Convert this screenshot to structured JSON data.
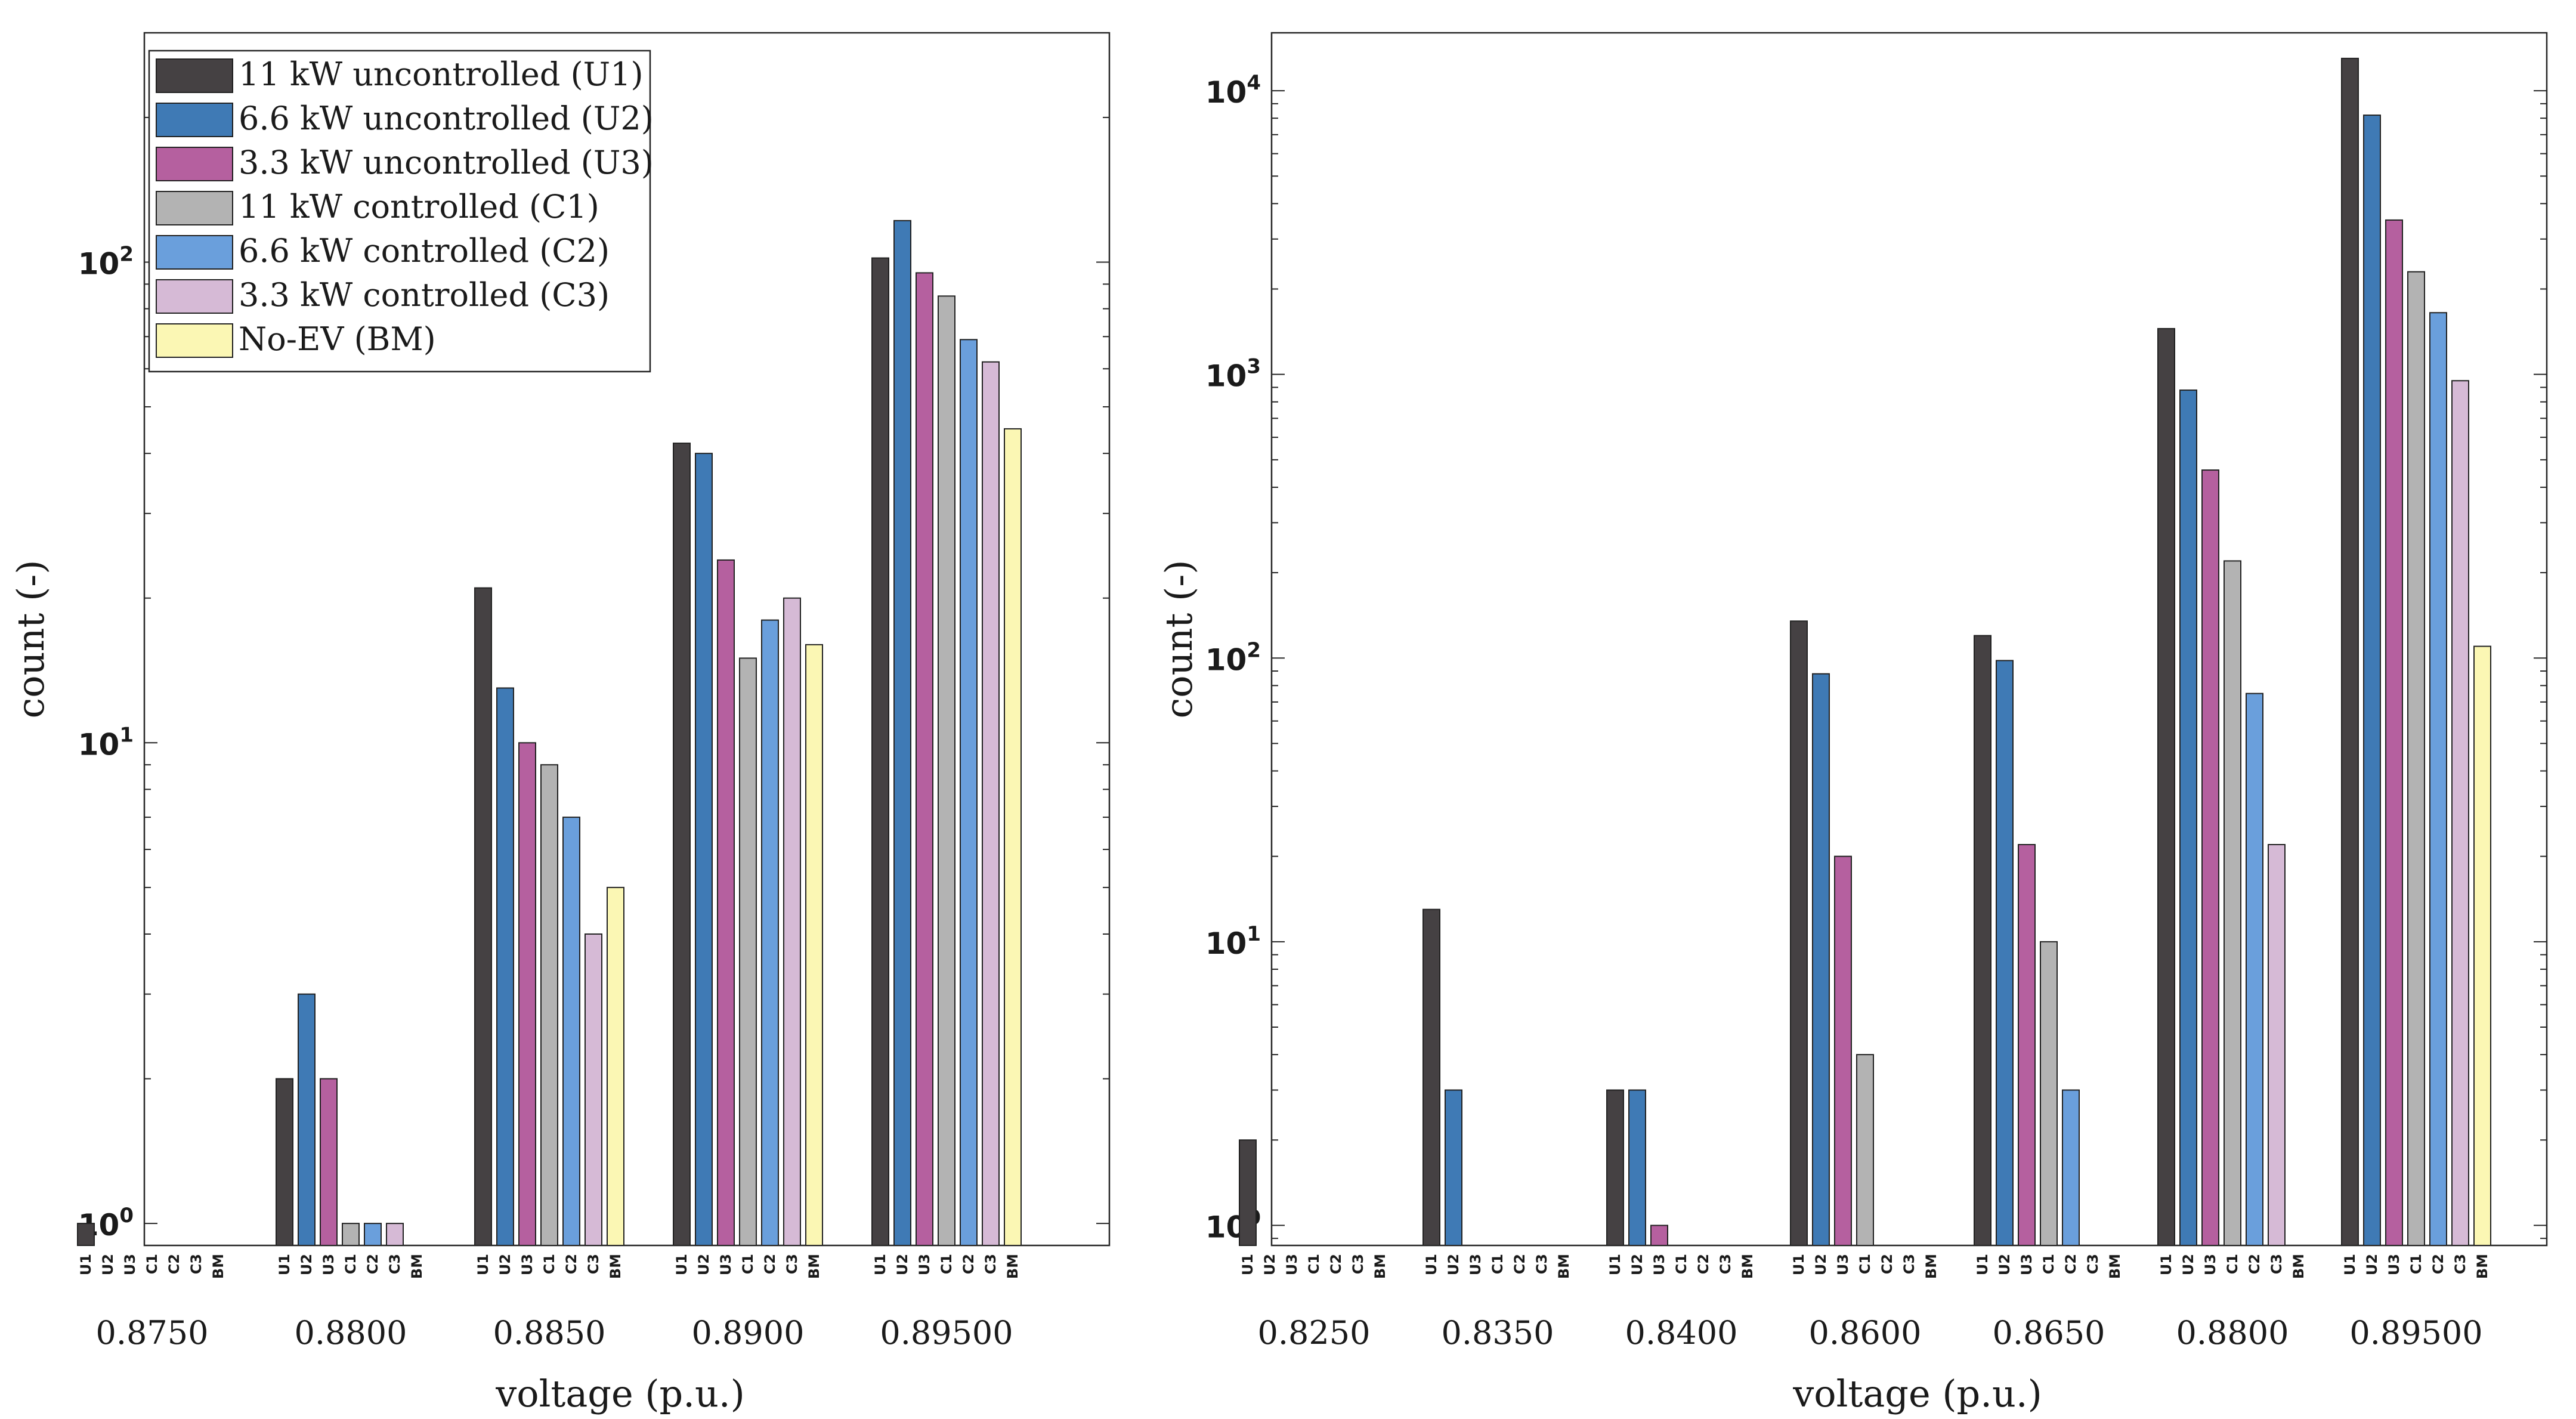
{
  "chart_data": [
    {
      "type": "bar",
      "scale": "log",
      "title": "",
      "xlabel": "voltage (p.u.)",
      "ylabel": "count (-)",
      "ylim": [
        0.9,
        300
      ],
      "yticks": [
        {
          "value": 1,
          "base": "10",
          "exp": "0"
        },
        {
          "value": 10,
          "base": "10",
          "exp": "1"
        },
        {
          "value": 100,
          "base": "10",
          "exp": "2"
        }
      ],
      "categories": [
        "0.8750",
        "0.8800",
        "0.8850",
        "0.8900",
        "0.89500"
      ],
      "series_codes": [
        "U1",
        "U2",
        "U3",
        "C1",
        "C2",
        "C3",
        "BM"
      ],
      "legend": {
        "placement": "top-left",
        "entries": [
          "11 kW uncontrolled (U1)",
          "6.6 kW uncontrolled (U2)",
          "3.3 kW uncontrolled (U3)",
          "11 kW controlled (C1)",
          "6.6 kW controlled (C2)",
          "3.3 kW controlled (C3)",
          "No-EV (BM)"
        ]
      },
      "series": [
        {
          "name": "11 kW uncontrolled (U1)",
          "color": "#454143",
          "values": [
            1,
            2,
            21,
            42,
            102
          ]
        },
        {
          "name": "6.6 kW uncontrolled (U2)",
          "color": "#3f7ab5",
          "values": [
            null,
            3,
            13,
            40,
            122
          ]
        },
        {
          "name": "3.3 kW uncontrolled (U3)",
          "color": "#b5609f",
          "values": [
            null,
            2,
            10,
            24,
            95
          ]
        },
        {
          "name": "11 kW controlled (C1)",
          "color": "#b3b3b3",
          "values": [
            null,
            1,
            9,
            15,
            85
          ]
        },
        {
          "name": "6.6 kW controlled (C2)",
          "color": "#6a9fdc",
          "values": [
            null,
            1,
            7,
            18,
            69
          ]
        },
        {
          "name": "3.3 kW controlled (C3)",
          "color": "#d6bad6",
          "values": [
            null,
            1,
            4,
            20,
            62
          ]
        },
        {
          "name": "No-EV (BM)",
          "color": "#fbf7b4",
          "values": [
            null,
            null,
            5,
            16,
            45
          ]
        }
      ]
    },
    {
      "type": "bar",
      "scale": "log",
      "title": "",
      "xlabel": "voltage (p.u.)",
      "ylabel": "count (-)",
      "ylim": [
        0.85,
        16000
      ],
      "yticks": [
        {
          "value": 1,
          "base": "10",
          "exp": "0"
        },
        {
          "value": 10,
          "base": "10",
          "exp": "1"
        },
        {
          "value": 100,
          "base": "10",
          "exp": "2"
        },
        {
          "value": 1000,
          "base": "10",
          "exp": "3"
        },
        {
          "value": 10000,
          "base": "10",
          "exp": "4"
        }
      ],
      "categories": [
        "0.8250",
        "0.8350",
        "0.8400",
        "0.8600",
        "0.8650",
        "0.8800",
        "0.89500"
      ],
      "series_codes": [
        "U1",
        "U2",
        "U3",
        "C1",
        "C2",
        "C3",
        "BM"
      ],
      "series": [
        {
          "name": "11 kW uncontrolled (U1)",
          "color": "#454143",
          "values": [
            2,
            13,
            3,
            135,
            120,
            1450,
            13000
          ]
        },
        {
          "name": "6.6 kW uncontrolled (U2)",
          "color": "#3f7ab5",
          "values": [
            null,
            3,
            3,
            88,
            98,
            880,
            8200
          ]
        },
        {
          "name": "3.3 kW uncontrolled (U3)",
          "color": "#b5609f",
          "values": [
            null,
            null,
            1,
            20,
            22,
            460,
            3500
          ]
        },
        {
          "name": "11 kW controlled (C1)",
          "color": "#b3b3b3",
          "values": [
            null,
            null,
            null,
            4,
            10,
            220,
            2300
          ]
        },
        {
          "name": "6.6 kW controlled (C2)",
          "color": "#6a9fdc",
          "values": [
            null,
            null,
            null,
            null,
            3,
            75,
            1650
          ]
        },
        {
          "name": "3.3 kW controlled (C3)",
          "color": "#d6bad6",
          "values": [
            null,
            null,
            null,
            null,
            null,
            22,
            950
          ]
        },
        {
          "name": "No-EV (BM)",
          "color": "#fbf7b4",
          "values": [
            null,
            null,
            null,
            null,
            null,
            null,
            110
          ]
        }
      ]
    }
  ]
}
